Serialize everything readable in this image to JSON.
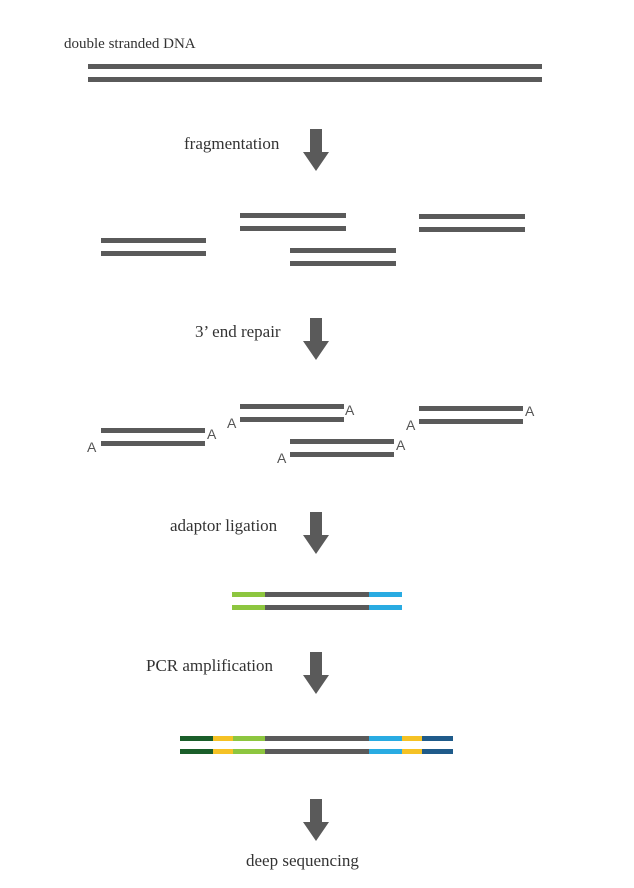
{
  "colors": {
    "strand": "#5a5a5a",
    "arrow": "#5a5a5a",
    "adaptor_light_green": "#8dc63f",
    "adaptor_cyan": "#29abe2",
    "index_dark_green": "#1a5e2a",
    "index_yellow": "#f5c225",
    "index_dark_blue": "#1f5b8a"
  },
  "labels": {
    "title": "double stranded DNA",
    "step_fragmentation": "fragmentation",
    "step_end_repair": "3’ end repair",
    "step_adaptor_ligation": "adaptor ligation",
    "step_pcr": "PCR amplification",
    "step_sequencing": "deep sequencing"
  },
  "a_tail": "A",
  "fragments": [
    {
      "id": "fragment-left"
    },
    {
      "id": "fragment-top-middle"
    },
    {
      "id": "fragment-bottom-middle"
    },
    {
      "id": "fragment-right"
    }
  ]
}
